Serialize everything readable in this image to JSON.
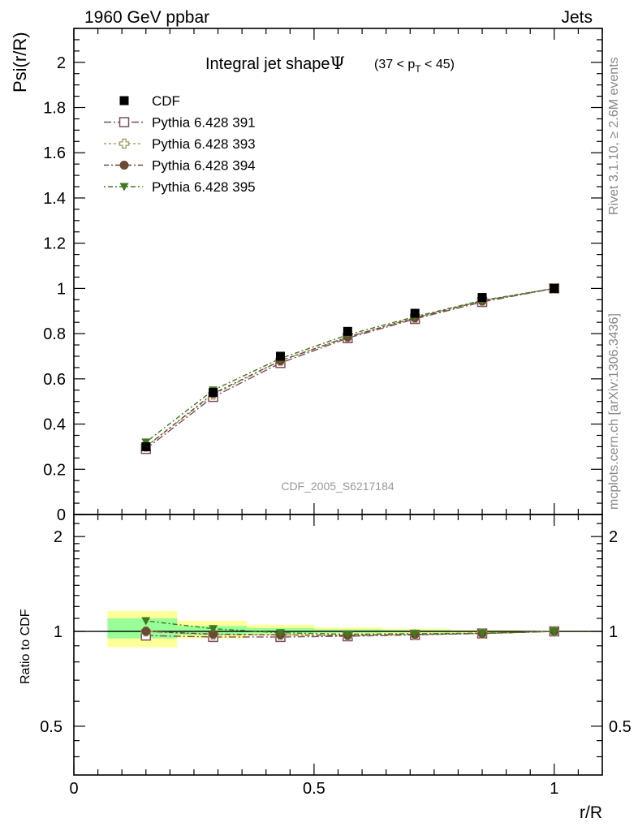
{
  "header": {
    "left_label": "1960 GeV ppbar",
    "right_label": "Jets"
  },
  "side_labels": {
    "rivet": "Rivet 3.1.10, ≥ 2.6M events",
    "mcplots": "mcplots.cern.ch [arXiv:1306.3436]"
  },
  "colors": {
    "cdf": "#000000",
    "p391": "#7b4f5e",
    "p393": "#a8a064",
    "p394": "#6b4a34",
    "p395": "#3f7a1e",
    "band_yellow": "#ffff99",
    "band_green": "#99ff99"
  },
  "chart_data": [
    {
      "type": "line",
      "title": "Integral jet shape",
      "title_symbol": "Ψ",
      "title_range": "(37 < p_T < 45)",
      "ylabel": "Psi(r/R)",
      "xlabel": "",
      "watermark": "CDF_2005_S6217184",
      "xlim": [
        0,
        1.1
      ],
      "ylim": [
        0,
        2.15
      ],
      "grid": false,
      "legend_position": "top-left",
      "x": [
        0.15,
        0.29,
        0.43,
        0.57,
        0.71,
        0.85,
        1.0
      ],
      "yticks": [
        "0",
        "0.2",
        "0.4",
        "0.6",
        "0.8",
        "1",
        "1.2",
        "1.4",
        "1.6",
        "1.8",
        "2"
      ],
      "series": [
        {
          "name": "CDF",
          "marker": "filled-square",
          "values": [
            0.3,
            0.54,
            0.7,
            0.81,
            0.89,
            0.96,
            1.0
          ]
        },
        {
          "name": "Pythia 6.428 391",
          "marker": "open-square",
          "values": [
            0.29,
            0.52,
            0.67,
            0.78,
            0.865,
            0.94,
            1.0
          ]
        },
        {
          "name": "Pythia 6.428 393",
          "marker": "open-cross",
          "values": [
            0.3,
            0.53,
            0.68,
            0.785,
            0.87,
            0.945,
            1.0
          ]
        },
        {
          "name": "Pythia 6.428 394",
          "marker": "filled-circle",
          "values": [
            0.3,
            0.535,
            0.68,
            0.785,
            0.87,
            0.945,
            1.0
          ]
        },
        {
          "name": "Pythia 6.428 395",
          "marker": "filled-triangle-down",
          "values": [
            0.32,
            0.55,
            0.69,
            0.795,
            0.875,
            0.947,
            1.0
          ]
        }
      ]
    },
    {
      "type": "line",
      "title": "",
      "ylabel": "Ratio to CDF",
      "xlabel": "r/R",
      "xlim": [
        0,
        1.1
      ],
      "ylim": [
        0.35,
        2.35
      ],
      "log_y": true,
      "grid": false,
      "x": [
        0.15,
        0.29,
        0.43,
        0.57,
        0.71,
        0.85,
        1.0
      ],
      "xticks": [
        "0",
        "0.5",
        "1"
      ],
      "yticks": [
        "0.5",
        "1",
        "2"
      ],
      "reference_band": {
        "x_edges": [
          [
            0.07,
            0.215
          ],
          [
            0.215,
            0.36
          ],
          [
            0.36,
            0.5
          ],
          [
            0.5,
            0.64
          ],
          [
            0.64,
            0.785
          ],
          [
            0.785,
            0.93
          ],
          [
            0.93,
            1.07
          ]
        ],
        "yellow": [
          [
            0.89,
            1.16
          ],
          [
            0.95,
            1.08
          ],
          [
            0.97,
            1.05
          ],
          [
            0.98,
            1.03
          ],
          [
            0.985,
            1.02
          ],
          [
            0.99,
            1.01
          ],
          [
            0.995,
            1.005
          ]
        ],
        "green": [
          [
            0.95,
            1.1
          ],
          [
            0.975,
            1.04
          ],
          [
            0.985,
            1.025
          ],
          [
            0.99,
            1.015
          ],
          [
            0.993,
            1.01
          ],
          [
            0.995,
            1.005
          ],
          [
            0.998,
            1.002
          ]
        ]
      },
      "series": [
        {
          "name": "Pythia 6.428 391",
          "marker": "open-square",
          "values": [
            0.97,
            0.96,
            0.96,
            0.965,
            0.975,
            0.985,
            1.0
          ]
        },
        {
          "name": "Pythia 6.428 393",
          "marker": "open-cross",
          "values": [
            1.0,
            0.975,
            0.975,
            0.97,
            0.978,
            0.985,
            1.0
          ]
        },
        {
          "name": "Pythia 6.428 394",
          "marker": "filled-circle",
          "values": [
            1.0,
            0.98,
            0.975,
            0.972,
            0.978,
            0.985,
            1.0
          ]
        },
        {
          "name": "Pythia 6.428 395",
          "marker": "filled-triangle-down",
          "values": [
            1.08,
            1.02,
            0.99,
            0.98,
            0.983,
            0.987,
            1.0
          ]
        }
      ]
    }
  ]
}
